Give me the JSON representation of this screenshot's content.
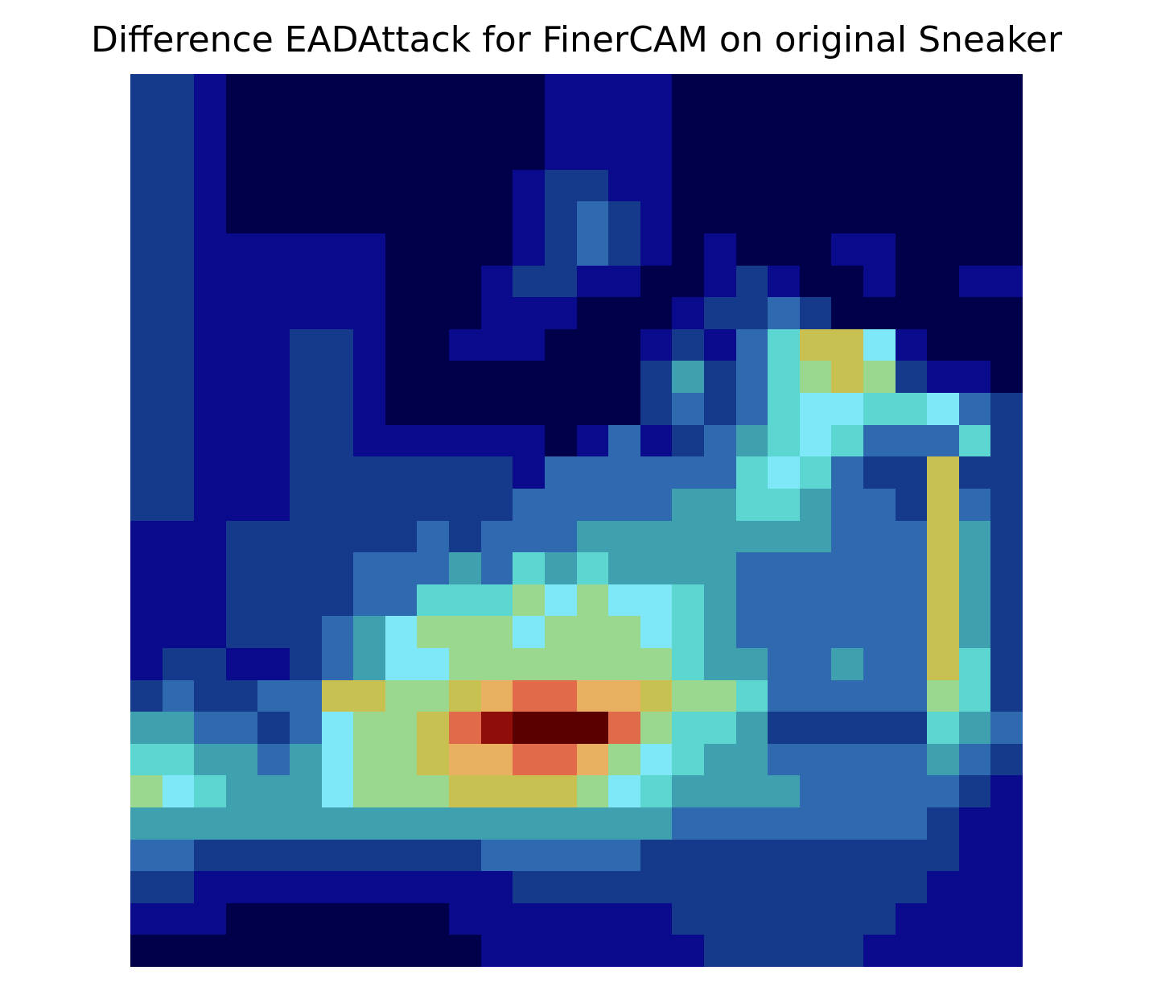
{
  "chart_data": {
    "type": "heatmap",
    "title": "Difference EADAttack for FinerCAM on original Sneaker",
    "xlabel": "",
    "ylabel": "",
    "axes_visible": false,
    "grid": false,
    "rows": 28,
    "cols": 28,
    "palette": [
      "#00004a",
      "#0a0a8c",
      "#153a8c",
      "#2f6ab0",
      "#3fa0b0",
      "#5bd6d0",
      "#7fe8f8",
      "#9ad890",
      "#c8c050",
      "#e8b060",
      "#e06a4a",
      "#900e0a",
      "#5a0000"
    ],
    "values": [
      [
        2,
        2,
        1,
        0,
        0,
        0,
        0,
        0,
        0,
        0,
        0,
        0,
        0,
        1,
        1,
        1,
        1,
        0,
        0,
        0,
        0,
        0,
        0,
        0,
        0,
        0,
        0,
        0
      ],
      [
        2,
        2,
        1,
        0,
        0,
        0,
        0,
        0,
        0,
        0,
        0,
        0,
        0,
        1,
        1,
        1,
        1,
        0,
        0,
        0,
        0,
        0,
        0,
        0,
        0,
        0,
        0,
        0
      ],
      [
        2,
        2,
        1,
        0,
        0,
        0,
        0,
        0,
        0,
        0,
        0,
        0,
        0,
        1,
        1,
        1,
        1,
        0,
        0,
        0,
        0,
        0,
        0,
        0,
        0,
        0,
        0,
        0
      ],
      [
        2,
        2,
        1,
        0,
        0,
        0,
        0,
        0,
        0,
        0,
        0,
        0,
        1,
        2,
        2,
        1,
        1,
        0,
        0,
        0,
        0,
        0,
        0,
        0,
        0,
        0,
        0,
        0
      ],
      [
        2,
        2,
        1,
        0,
        0,
        0,
        0,
        0,
        0,
        0,
        0,
        0,
        1,
        2,
        3,
        2,
        1,
        0,
        0,
        0,
        0,
        0,
        0,
        0,
        0,
        0,
        0,
        0
      ],
      [
        2,
        2,
        1,
        1,
        1,
        1,
        1,
        1,
        0,
        0,
        0,
        0,
        1,
        2,
        3,
        2,
        1,
        0,
        1,
        0,
        0,
        0,
        1,
        1,
        0,
        0,
        0,
        0
      ],
      [
        2,
        2,
        1,
        1,
        1,
        1,
        1,
        1,
        0,
        0,
        0,
        1,
        2,
        2,
        1,
        1,
        0,
        0,
        1,
        2,
        1,
        0,
        0,
        1,
        0,
        0,
        1,
        1
      ],
      [
        2,
        2,
        1,
        1,
        1,
        1,
        1,
        1,
        0,
        0,
        0,
        1,
        1,
        1,
        0,
        0,
        0,
        1,
        2,
        2,
        3,
        2,
        0,
        0,
        0,
        0,
        0,
        0
      ],
      [
        2,
        2,
        1,
        1,
        1,
        2,
        2,
        1,
        0,
        0,
        1,
        1,
        1,
        0,
        0,
        0,
        1,
        2,
        1,
        3,
        5,
        8,
        8,
        6,
        1,
        0,
        0,
        0
      ],
      [
        2,
        2,
        1,
        1,
        1,
        2,
        2,
        1,
        0,
        0,
        0,
        0,
        0,
        0,
        0,
        0,
        2,
        4,
        2,
        3,
        5,
        7,
        8,
        7,
        2,
        1,
        1,
        0
      ],
      [
        2,
        2,
        1,
        1,
        1,
        2,
        2,
        1,
        0,
        0,
        0,
        0,
        0,
        0,
        0,
        0,
        2,
        3,
        2,
        3,
        5,
        6,
        6,
        5,
        5,
        6,
        3,
        2
      ],
      [
        2,
        2,
        1,
        1,
        1,
        2,
        2,
        1,
        1,
        1,
        1,
        1,
        1,
        0,
        1,
        3,
        1,
        2,
        3,
        4,
        5,
        6,
        5,
        3,
        3,
        3,
        5,
        2
      ],
      [
        2,
        2,
        1,
        1,
        1,
        2,
        2,
        2,
        2,
        2,
        2,
        2,
        1,
        3,
        3,
        3,
        3,
        3,
        3,
        5,
        6,
        5,
        3,
        2,
        2,
        8,
        2,
        2
      ],
      [
        2,
        2,
        1,
        1,
        1,
        2,
        2,
        2,
        2,
        2,
        2,
        2,
        3,
        3,
        3,
        3,
        3,
        4,
        4,
        5,
        5,
        4,
        3,
        3,
        2,
        8,
        3,
        2
      ],
      [
        1,
        1,
        1,
        2,
        2,
        2,
        2,
        2,
        2,
        3,
        2,
        3,
        3,
        3,
        4,
        4,
        4,
        4,
        4,
        4,
        4,
        4,
        3,
        3,
        3,
        8,
        4,
        2
      ],
      [
        1,
        1,
        1,
        2,
        2,
        2,
        2,
        3,
        3,
        3,
        4,
        3,
        5,
        4,
        5,
        4,
        4,
        4,
        4,
        3,
        3,
        3,
        3,
        3,
        3,
        8,
        4,
        2
      ],
      [
        1,
        1,
        1,
        2,
        2,
        2,
        2,
        3,
        3,
        5,
        5,
        5,
        7,
        6,
        7,
        6,
        6,
        5,
        4,
        3,
        3,
        3,
        3,
        3,
        3,
        8,
        4,
        2
      ],
      [
        1,
        1,
        1,
        2,
        2,
        2,
        3,
        4,
        6,
        7,
        7,
        7,
        6,
        7,
        7,
        7,
        6,
        5,
        4,
        3,
        3,
        3,
        3,
        3,
        3,
        8,
        4,
        2
      ],
      [
        1,
        2,
        2,
        1,
        1,
        2,
        3,
        4,
        6,
        6,
        7,
        7,
        7,
        7,
        7,
        7,
        7,
        5,
        4,
        4,
        3,
        3,
        4,
        3,
        3,
        8,
        5,
        2
      ],
      [
        2,
        3,
        2,
        2,
        3,
        3,
        8,
        8,
        7,
        7,
        8,
        9,
        10,
        10,
        9,
        9,
        8,
        7,
        7,
        5,
        3,
        3,
        3,
        3,
        3,
        7,
        5,
        2
      ],
      [
        4,
        4,
        3,
        3,
        2,
        3,
        6,
        7,
        7,
        8,
        10,
        11,
        12,
        12,
        12,
        10,
        7,
        5,
        5,
        4,
        2,
        2,
        2,
        2,
        2,
        5,
        4,
        3
      ],
      [
        5,
        5,
        4,
        4,
        3,
        4,
        6,
        7,
        7,
        8,
        9,
        9,
        10,
        10,
        9,
        7,
        6,
        5,
        4,
        4,
        3,
        3,
        3,
        3,
        3,
        4,
        3,
        2
      ],
      [
        7,
        6,
        5,
        4,
        4,
        4,
        6,
        7,
        7,
        7,
        8,
        8,
        8,
        8,
        7,
        6,
        5,
        4,
        4,
        4,
        4,
        3,
        3,
        3,
        3,
        3,
        2,
        1
      ],
      [
        4,
        4,
        4,
        4,
        4,
        4,
        4,
        4,
        4,
        4,
        4,
        4,
        4,
        4,
        4,
        4,
        4,
        3,
        3,
        3,
        3,
        3,
        3,
        3,
        3,
        2,
        1,
        1
      ],
      [
        3,
        3,
        2,
        2,
        2,
        2,
        2,
        2,
        2,
        2,
        2,
        3,
        3,
        3,
        3,
        3,
        2,
        2,
        2,
        2,
        2,
        2,
        2,
        2,
        2,
        2,
        1,
        1
      ],
      [
        2,
        2,
        1,
        1,
        1,
        1,
        1,
        1,
        1,
        1,
        1,
        1,
        2,
        2,
        2,
        2,
        2,
        2,
        2,
        2,
        2,
        2,
        2,
        2,
        2,
        1,
        1,
        1
      ],
      [
        1,
        1,
        1,
        0,
        0,
        0,
        0,
        0,
        0,
        0,
        1,
        1,
        1,
        1,
        1,
        1,
        1,
        2,
        2,
        2,
        2,
        2,
        2,
        2,
        1,
        1,
        1,
        1
      ],
      [
        0,
        0,
        0,
        0,
        0,
        0,
        0,
        0,
        0,
        0,
        0,
        1,
        1,
        1,
        1,
        1,
        1,
        1,
        2,
        2,
        2,
        2,
        2,
        1,
        1,
        1,
        1,
        1
      ]
    ]
  }
}
